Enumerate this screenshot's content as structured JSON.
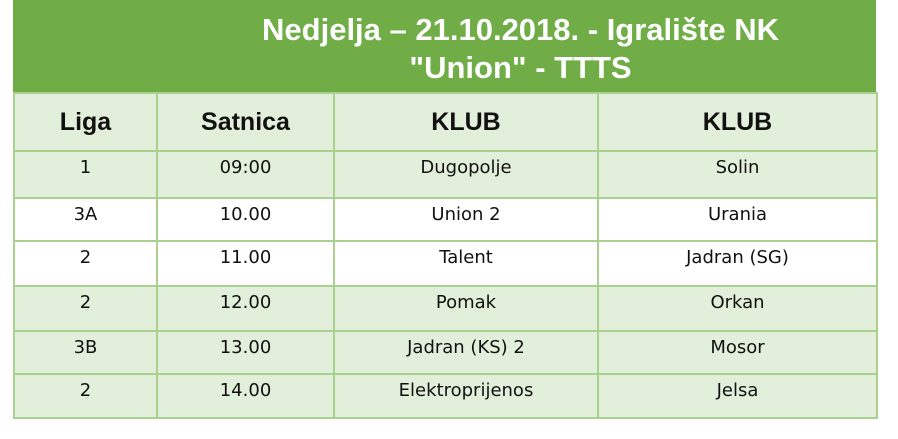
{
  "title_line1": "Nedjelja – 21.10.2018. - Igralište NK",
  "title_line2": "\"Union\" - TTTS",
  "colors": {
    "header": "#70ad47",
    "row_alt": "#e2efda",
    "border": "#a9d08e"
  },
  "columns": [
    "Liga",
    "Satnica",
    "KLUB",
    "KLUB"
  ],
  "rows": [
    [
      "1",
      "09:00",
      "Dugopolje",
      "Solin"
    ],
    [
      "3A",
      "10.00",
      "Union 2",
      "Urania"
    ],
    [
      "2",
      "11.00",
      "Talent",
      "Jadran (SG)"
    ],
    [
      "2",
      "12.00",
      "Pomak",
      "Orkan"
    ],
    [
      "3B",
      "13.00",
      "Jadran (KS) 2",
      "Mosor"
    ],
    [
      "2",
      "14.00",
      "Elektroprijenos",
      "Jelsa"
    ]
  ]
}
